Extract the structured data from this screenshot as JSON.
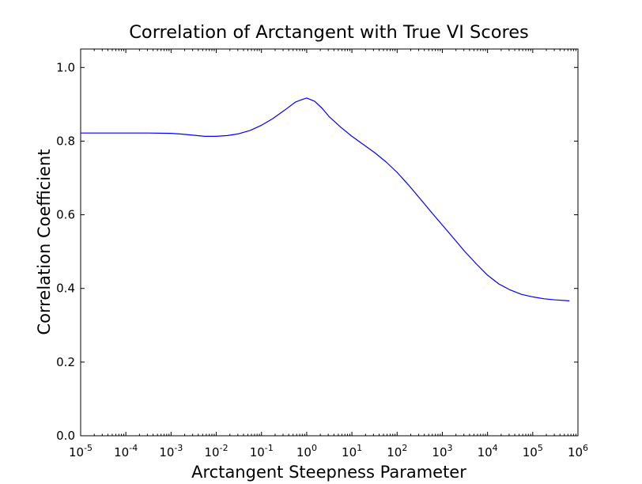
{
  "chart_data": {
    "type": "line",
    "title": "Correlation of Arctangent with True VI Scores",
    "xlabel": "Arctangent Steepness Parameter",
    "ylabel": "Correlation Coefficient",
    "xscale": "log",
    "xlim": [
      1e-05,
      1000000
    ],
    "ylim": [
      0.0,
      1.05
    ],
    "x_ticks": [
      {
        "value": 1e-05,
        "base": "10",
        "exp": "-5"
      },
      {
        "value": 0.0001,
        "base": "10",
        "exp": "-4"
      },
      {
        "value": 0.001,
        "base": "10",
        "exp": "-3"
      },
      {
        "value": 0.01,
        "base": "10",
        "exp": "-2"
      },
      {
        "value": 0.1,
        "base": "10",
        "exp": "-1"
      },
      {
        "value": 1,
        "base": "10",
        "exp": "0"
      },
      {
        "value": 10,
        "base": "10",
        "exp": "1"
      },
      {
        "value": 100,
        "base": "10",
        "exp": "2"
      },
      {
        "value": 1000,
        "base": "10",
        "exp": "3"
      },
      {
        "value": 10000,
        "base": "10",
        "exp": "4"
      },
      {
        "value": 100000,
        "base": "10",
        "exp": "5"
      },
      {
        "value": 1000000,
        "base": "10",
        "exp": "6"
      }
    ],
    "y_ticks": [
      {
        "value": 0.0,
        "label": "0.0"
      },
      {
        "value": 0.2,
        "label": "0.2"
      },
      {
        "value": 0.4,
        "label": "0.4"
      },
      {
        "value": 0.6,
        "label": "0.6"
      },
      {
        "value": 0.8,
        "label": "0.8"
      },
      {
        "value": 1.0,
        "label": "1.0"
      }
    ],
    "grid": false,
    "series": [
      {
        "color": "#0000ff",
        "x": [
          1e-05,
          3.16e-05,
          0.0001,
          0.000316,
          0.001,
          0.00178,
          0.00316,
          0.00562,
          0.01,
          0.0178,
          0.0316,
          0.0562,
          0.1,
          0.178,
          0.316,
          0.562,
          0.75,
          1.0,
          1.5,
          2.2,
          3.16,
          5.62,
          10,
          17.8,
          31.6,
          56.2,
          100,
          178,
          316,
          562,
          1000,
          1780,
          3160,
          5620,
          10000,
          17800,
          31600,
          56200,
          100000,
          178000,
          316000,
          562000,
          650000
        ],
        "y": [
          0.822,
          0.822,
          0.822,
          0.822,
          0.821,
          0.819,
          0.816,
          0.813,
          0.813,
          0.815,
          0.82,
          0.829,
          0.843,
          0.861,
          0.883,
          0.906,
          0.912,
          0.917,
          0.908,
          0.889,
          0.866,
          0.838,
          0.813,
          0.791,
          0.769,
          0.744,
          0.715,
          0.681,
          0.645,
          0.608,
          0.572,
          0.536,
          0.5,
          0.467,
          0.436,
          0.412,
          0.396,
          0.384,
          0.377,
          0.372,
          0.369,
          0.367,
          0.366
        ]
      }
    ]
  }
}
